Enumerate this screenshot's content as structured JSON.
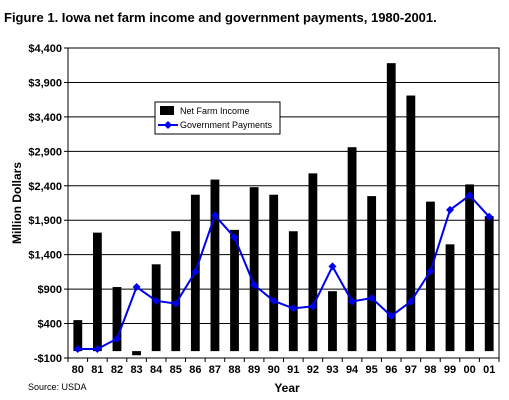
{
  "chart_data": {
    "type": "bar",
    "title": "Figure 1. Iowa net farm income and government payments, 1980-2001.",
    "xlabel": "Year",
    "ylabel": "Million Dollars",
    "source": "Source: USDA",
    "ylim": [
      -100,
      4400
    ],
    "yticks": [
      -100,
      400,
      900,
      1400,
      1900,
      2400,
      2900,
      3400,
      3900,
      4400
    ],
    "ytick_labels": [
      "-$100",
      "$400",
      "$900",
      "$1,400",
      "$1,900",
      "$2,400",
      "$2,900",
      "$3,400",
      "$3,900",
      "$4,400"
    ],
    "grid": true,
    "legend_position": "upper-left",
    "categories": [
      "80",
      "81",
      "82",
      "83",
      "84",
      "85",
      "86",
      "87",
      "88",
      "89",
      "90",
      "91",
      "92",
      "93",
      "94",
      "95",
      "96",
      "97",
      "98",
      "99",
      "00",
      "01"
    ],
    "series": [
      {
        "name": "Net Farm Income",
        "type": "bar",
        "color": "#000000",
        "values": [
          450,
          1720,
          930,
          -60,
          1260,
          1740,
          2270,
          2490,
          1760,
          2380,
          2270,
          1740,
          2580,
          870,
          2960,
          2250,
          4180,
          3710,
          2170,
          1550,
          2420,
          1960
        ]
      },
      {
        "name": "Government Payments",
        "type": "line",
        "color": "#0000ee",
        "values": [
          30,
          30,
          180,
          930,
          730,
          690,
          1150,
          1970,
          1650,
          960,
          730,
          620,
          650,
          1230,
          720,
          770,
          510,
          720,
          1160,
          2050,
          2260,
          1950
        ]
      }
    ]
  }
}
